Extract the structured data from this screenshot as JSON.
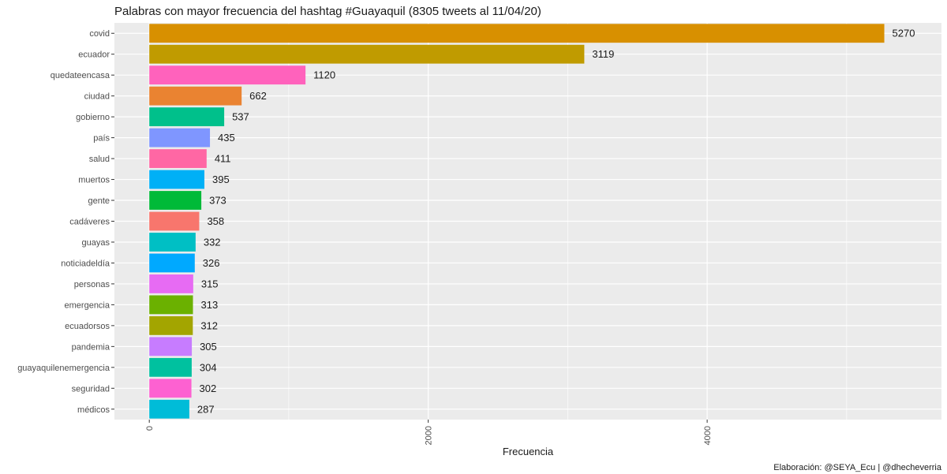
{
  "chart_data": {
    "type": "bar",
    "orientation": "horizontal",
    "title": "Palabras con mayor frecuencia del hashtag #Guayaquil (8305 tweets al 11/04/20)",
    "xlabel": "Frecuencia",
    "ylabel": "",
    "caption": "Elaboración: @SEYA_Ecu | @dhecheverria",
    "xlim": [
      -250,
      5680
    ],
    "xticks": [
      0,
      2000,
      4000
    ],
    "xtick_labels": [
      "0",
      "2000",
      "4000"
    ],
    "grid": true,
    "legend": "none",
    "categories": [
      "covid",
      "ecuador",
      "quedateencasa",
      "ciudad",
      "gobierno",
      "país",
      "salud",
      "muertos",
      "gente",
      "cadáveres",
      "guayas",
      "noticiadeldía",
      "personas",
      "emergencia",
      "ecuadorsos",
      "pandemia",
      "guayaquilenemergencia",
      "seguridad",
      "médicos"
    ],
    "values": [
      5270,
      3119,
      1120,
      662,
      537,
      435,
      411,
      395,
      373,
      358,
      332,
      326,
      315,
      313,
      312,
      305,
      304,
      302,
      287
    ],
    "value_labels": [
      "5270",
      "3119",
      "1120",
      "662",
      "537",
      "435",
      "411",
      "395",
      "373",
      "358",
      "332",
      "326",
      "315",
      "313",
      "312",
      "305",
      "304",
      "302",
      "287"
    ],
    "colors": [
      "#D89000",
      "#C09B00",
      "#FF62BC",
      "#EA8331",
      "#00C08B",
      "#7F96FF",
      "#FF67A4",
      "#00B0F6",
      "#00BA38",
      "#F8766D",
      "#00BFC4",
      "#00A9FF",
      "#E76BF3",
      "#6BB100",
      "#A3A500",
      "#C77CFF",
      "#00C19F",
      "#FD61D1",
      "#00BCD8"
    ],
    "panel_bg": "#EBEBEB",
    "grid_color": "#FFFFFF"
  }
}
